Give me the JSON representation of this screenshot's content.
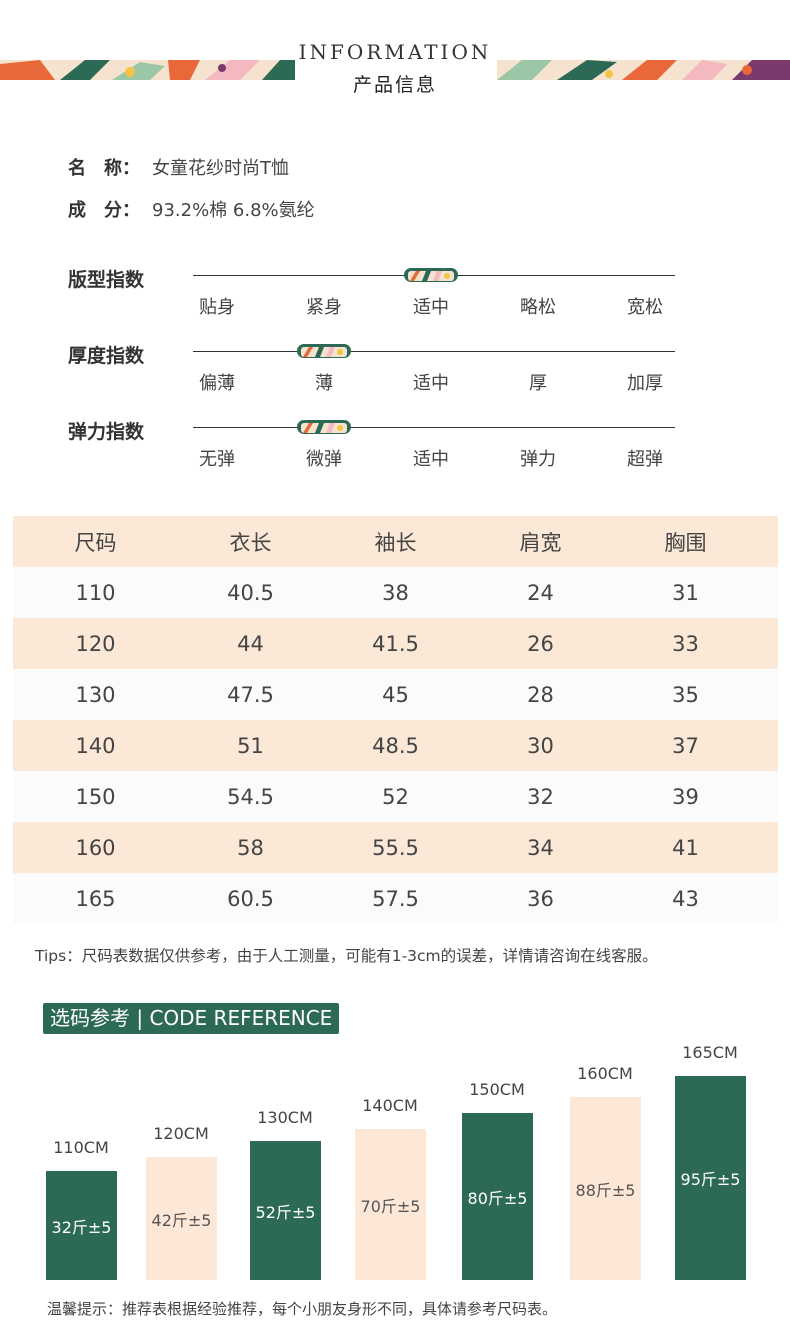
{
  "header": {
    "title_en": "INFORMATION",
    "title_cn": "产品信息"
  },
  "info": {
    "name_label": "名　称：",
    "name_value": "女童花纱时尚T恤",
    "comp_label": "成　分：",
    "comp_value": "93.2%棉 6.8%氨纶"
  },
  "indices": [
    {
      "title": "版型指数",
      "options": [
        "贴身",
        "紧身",
        "适中",
        "略松",
        "宽松"
      ],
      "selected_index": 2
    },
    {
      "title": "厚度指数",
      "options": [
        "偏薄",
        "薄",
        "适中",
        "厚",
        "加厚"
      ],
      "selected_index": 1
    },
    {
      "title": "弹力指数",
      "options": [
        "无弹",
        "微弹",
        "适中",
        "弹力",
        "超弹"
      ],
      "selected_index": 1
    }
  ],
  "size_table": {
    "headers": [
      "尺码",
      "衣长",
      "袖长",
      "肩宽",
      "胸围"
    ],
    "rows": [
      [
        "110",
        "40.5",
        "38",
        "24",
        "31"
      ],
      [
        "120",
        "44",
        "41.5",
        "26",
        "33"
      ],
      [
        "130",
        "47.5",
        "45",
        "28",
        "35"
      ],
      [
        "140",
        "51",
        "48.5",
        "30",
        "37"
      ],
      [
        "150",
        "54.5",
        "52",
        "32",
        "39"
      ],
      [
        "160",
        "58",
        "55.5",
        "34",
        "41"
      ],
      [
        "165",
        "60.5",
        "57.5",
        "36",
        "43"
      ]
    ]
  },
  "tips": "Tips：尺码表数据仅供参考，由于人工测量，可能有1-3cm的误差，详情请咨询在线客服。",
  "reference": {
    "badge": "选码参考 | CODE REFERENCE",
    "items": [
      {
        "size": "110CM",
        "weight": "32斤±5",
        "level": 0.47,
        "style": "green"
      },
      {
        "size": "120CM",
        "weight": "42斤±5",
        "level": 0.53,
        "style": "beige"
      },
      {
        "size": "130CM",
        "weight": "52斤±5",
        "level": 0.6,
        "style": "green"
      },
      {
        "size": "140CM",
        "weight": "70斤±5",
        "level": 0.65,
        "style": "beige"
      },
      {
        "size": "150CM",
        "weight": "80斤±5",
        "level": 0.72,
        "style": "green"
      },
      {
        "size": "160CM",
        "weight": "88斤±5",
        "level": 0.79,
        "style": "beige"
      },
      {
        "size": "165CM",
        "weight": "95斤±5",
        "level": 0.88,
        "style": "green"
      }
    ]
  },
  "footer": "温馨提示：推荐表根据经验推荐，每个小朋友身形不同，具体请参考尺码表。",
  "colors": {
    "accent_green": "#2d6a55",
    "beige": "#fbe8d6",
    "deco_orange": "#e8683a"
  }
}
